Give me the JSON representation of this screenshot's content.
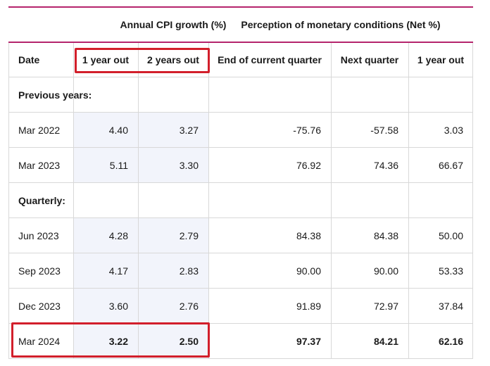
{
  "header": {
    "group_cpi": "Annual CPI growth (%)",
    "group_perception": "Perception of monetary conditions (Net %)",
    "columns": [
      "Date",
      "1 year out",
      "2 years out",
      "End of current quarter",
      "Next quarter",
      "1 year out"
    ]
  },
  "sections": {
    "previous": "Previous years:",
    "quarterly": "Quarterly:"
  },
  "rows": [
    {
      "date": "Mar 2022",
      "cpi1": "4.40",
      "cpi2": "3.27",
      "cur": "-75.76",
      "next": "-57.58",
      "yr": "3.03"
    },
    {
      "date": "Mar 2023",
      "cpi1": "5.11",
      "cpi2": "3.30",
      "cur": "76.92",
      "next": "74.36",
      "yr": "66.67"
    },
    {
      "date": "Jun 2023",
      "cpi1": "4.28",
      "cpi2": "2.79",
      "cur": "84.38",
      "next": "84.38",
      "yr": "50.00"
    },
    {
      "date": "Sep 2023",
      "cpi1": "4.17",
      "cpi2": "2.83",
      "cur": "90.00",
      "next": "90.00",
      "yr": "53.33"
    },
    {
      "date": "Dec 2023",
      "cpi1": "3.60",
      "cpi2": "2.76",
      "cur": "91.89",
      "next": "72.97",
      "yr": "37.84"
    },
    {
      "date": "Mar 2024",
      "cpi1": "3.22",
      "cpi2": "2.50",
      "cur": "97.37",
      "next": "84.21",
      "yr": "62.16"
    }
  ],
  "colors": {
    "accent": "#b5246c",
    "highlight": "#d21f2b",
    "shade": "#f2f4fb"
  }
}
